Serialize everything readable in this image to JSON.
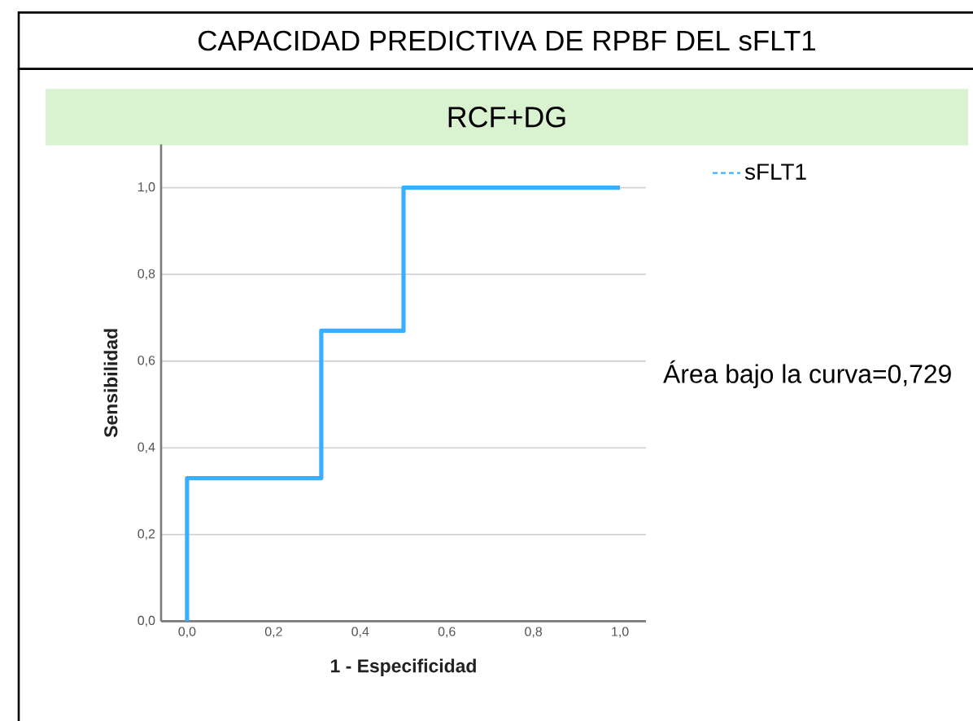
{
  "chart_data": {
    "type": "line",
    "title": "CAPACIDAD PREDICTIVA DE RPBF DEL sFLT1",
    "subtitle": "RCF+DG",
    "xlabel": "1 - Especificidad",
    "ylabel": "Sensibilidad",
    "annotations": [
      "Área bajo la curva=0,729"
    ],
    "x": [
      0,
      0,
      0.31,
      0.31,
      0.5,
      0.5,
      1
    ],
    "series": [
      {
        "name": "sFLT1",
        "color": "#3aaeff",
        "values": [
          0,
          0.33,
          0.33,
          0.67,
          0.67,
          1,
          1
        ]
      }
    ],
    "xlim": [
      -0.06,
      1.06
    ],
    "ylim": [
      0,
      1.1
    ],
    "xticks": [
      {
        "value": 0,
        "label": "0,0"
      },
      {
        "value": 0.2,
        "label": "0,2"
      },
      {
        "value": 0.4,
        "label": "0,4"
      },
      {
        "value": 0.6,
        "label": "0,6"
      },
      {
        "value": 0.8,
        "label": "0,8"
      },
      {
        "value": 1,
        "label": "1,0"
      }
    ],
    "yticks": [
      {
        "value": 0,
        "label": "0,0"
      },
      {
        "value": 0.2,
        "label": "0,2"
      },
      {
        "value": 0.4,
        "label": "0,4"
      },
      {
        "value": 0.6,
        "label": "0,6"
      },
      {
        "value": 0.8,
        "label": "0,8"
      },
      {
        "value": 1,
        "label": "1,0"
      }
    ],
    "grid": "y",
    "legend": "top right",
    "marker": "none",
    "line_style": "solid"
  }
}
